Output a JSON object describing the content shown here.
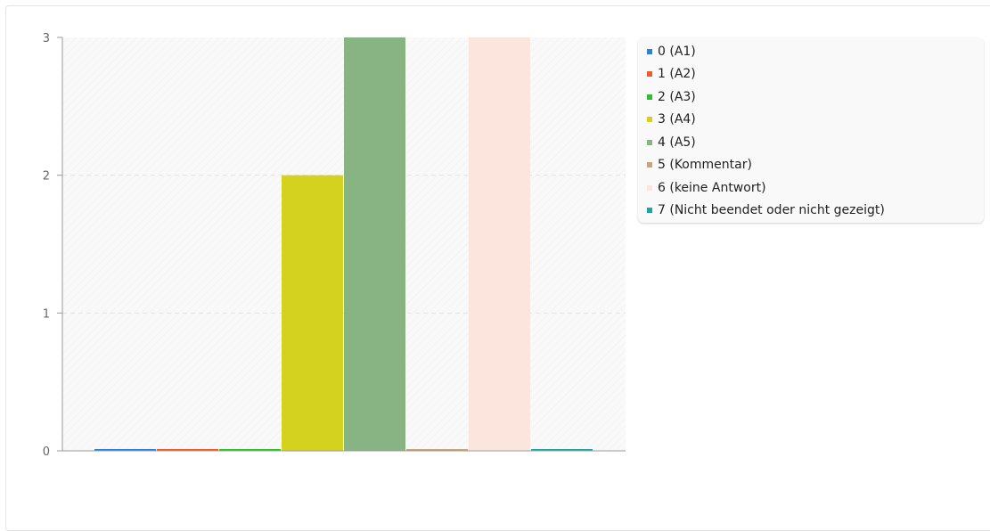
{
  "chart_data": {
    "type": "bar",
    "categories": [
      "0 (A1)",
      "1 (A2)",
      "2 (A3)",
      "3 (A4)",
      "4 (A5)",
      "5 (Kommentar)",
      "6 (keine Antwort)",
      "7 (Nicht beendet oder nicht gezeigt)"
    ],
    "values": [
      0,
      0,
      0,
      2,
      3,
      0,
      3,
      0
    ],
    "colors": [
      "#2f7ed8",
      "#f05a28",
      "#2ebf2e",
      "#d4d21e",
      "#88b383",
      "#c8a37c",
      "#fbe5dc",
      "#21a3a3"
    ],
    "ylim": [
      0,
      3
    ],
    "yticks": [
      0,
      1,
      2,
      3
    ],
    "grid": true,
    "legend": "right"
  }
}
